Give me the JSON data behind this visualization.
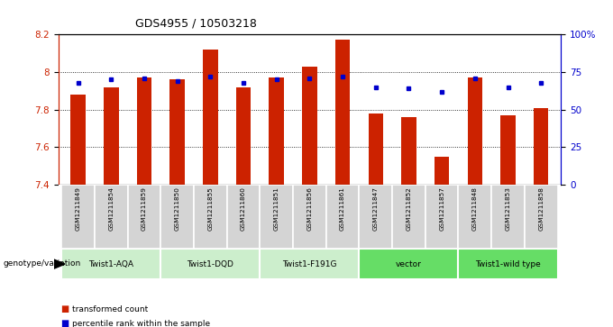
{
  "title": "GDS4955 / 10503218",
  "samples": [
    "GSM1211849",
    "GSM1211854",
    "GSM1211859",
    "GSM1211850",
    "GSM1211855",
    "GSM1211860",
    "GSM1211851",
    "GSM1211856",
    "GSM1211861",
    "GSM1211847",
    "GSM1211852",
    "GSM1211857",
    "GSM1211848",
    "GSM1211853",
    "GSM1211858"
  ],
  "bar_values": [
    7.88,
    7.92,
    7.97,
    7.96,
    8.12,
    7.92,
    7.97,
    8.03,
    8.17,
    7.78,
    7.76,
    7.55,
    7.97,
    7.77,
    7.81
  ],
  "percentile_values": [
    68,
    70,
    71,
    69,
    72,
    68,
    70,
    71,
    72,
    65,
    64,
    62,
    71,
    65,
    68
  ],
  "ylim_left": [
    7.4,
    8.2
  ],
  "ylim_right": [
    0,
    100
  ],
  "bar_color": "#cc2200",
  "dot_color": "#0000cc",
  "groups": [
    {
      "label": "Twist1-AQA",
      "start": 0,
      "end": 3,
      "color": "#cceecc"
    },
    {
      "label": "Twist1-DQD",
      "start": 3,
      "end": 6,
      "color": "#cceecc"
    },
    {
      "label": "Twist1-F191G",
      "start": 6,
      "end": 9,
      "color": "#cceecc"
    },
    {
      "label": "vector",
      "start": 9,
      "end": 12,
      "color": "#66dd66"
    },
    {
      "label": "Twist1-wild type",
      "start": 12,
      "end": 15,
      "color": "#66dd66"
    }
  ],
  "bar_width": 0.45,
  "left_ylabel_color": "#cc2200",
  "right_ylabel_color": "#0000cc",
  "genotype_label": "genotype/variation",
  "legend_items": [
    {
      "color": "#cc2200",
      "label": "transformed count"
    },
    {
      "color": "#0000cc",
      "label": "percentile rank within the sample"
    }
  ],
  "ybase": 7.4,
  "right_ticks": [
    0,
    25,
    50,
    75,
    100
  ],
  "right_tick_labels": [
    "0",
    "25",
    "50",
    "75",
    "100%"
  ],
  "left_ticks": [
    7.4,
    7.6,
    7.8,
    8.0,
    8.2
  ],
  "left_tick_labels": [
    "7.4",
    "7.6",
    "7.8",
    "8",
    "8.2"
  ]
}
